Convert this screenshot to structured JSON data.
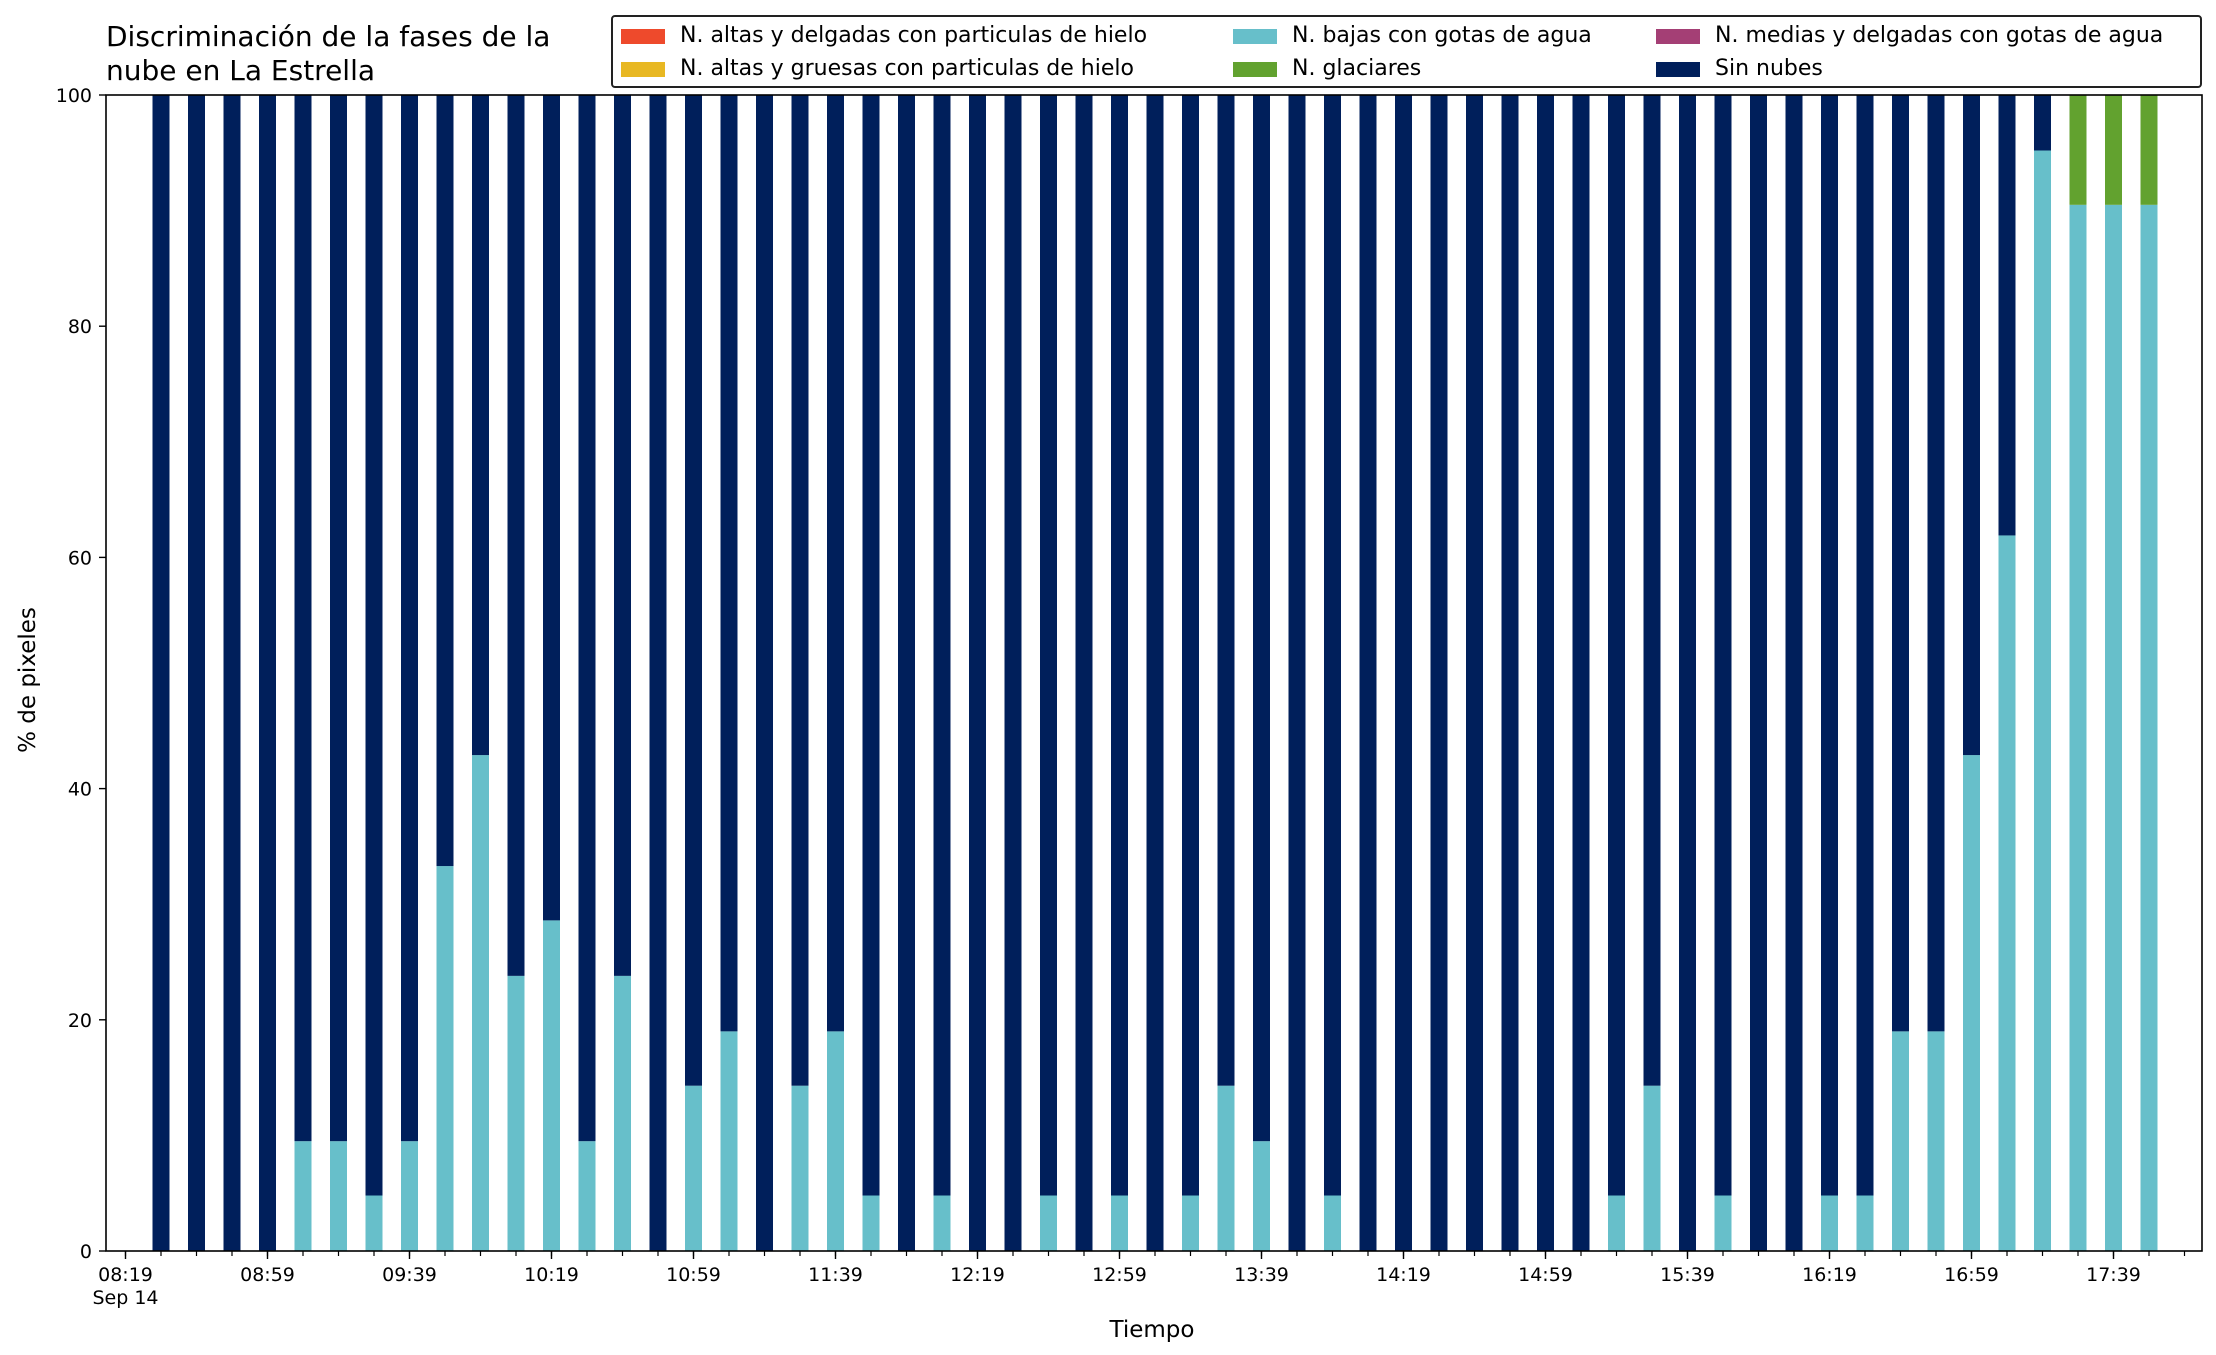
{
  "chart_data": {
    "type": "bar",
    "stacked": true,
    "title": "Discriminación de la fases de la nube en La Estrella",
    "title_lines": [
      "Discriminación de la fases de la",
      "nube en La Estrella"
    ],
    "xlabel": "Tiempo",
    "ylabel": "% de pixeles",
    "ylim": [
      0,
      100
    ],
    "yticks": [
      0,
      20,
      40,
      60,
      80,
      100
    ],
    "x_start": "08:19",
    "x_interval_minutes": 10,
    "xticks": [
      "08:19",
      "08:59",
      "09:39",
      "10:19",
      "10:59",
      "11:39",
      "12:19",
      "12:59",
      "13:39",
      "14:19",
      "14:59",
      "15:39",
      "16:19",
      "16:59",
      "17:39"
    ],
    "first_tick_sublabel": "Sep 14",
    "categories": [
      "08:29",
      "08:39",
      "08:49",
      "08:59",
      "09:09",
      "09:19",
      "09:29",
      "09:39",
      "09:49",
      "09:59",
      "10:09",
      "10:19",
      "10:29",
      "10:39",
      "10:49",
      "10:59",
      "11:09",
      "11:19",
      "11:29",
      "11:39",
      "11:49",
      "11:59",
      "12:09",
      "12:19",
      "12:29",
      "12:39",
      "12:49",
      "12:59",
      "13:09",
      "13:19",
      "13:29",
      "13:39",
      "13:49",
      "13:59",
      "14:09",
      "14:19",
      "14:29",
      "14:39",
      "14:49",
      "14:59",
      "15:09",
      "15:19",
      "15:29",
      "15:39",
      "15:49",
      "15:59",
      "16:09",
      "16:19",
      "16:29",
      "16:39",
      "16:49",
      "16:59",
      "17:09",
      "17:19",
      "17:29",
      "17:39",
      "17:49"
    ],
    "legend_position": "top-right",
    "legend_columns": 3,
    "series": [
      {
        "name": "N. altas y delgadas con particulas de hielo",
        "color": "#ee4a2c",
        "values": [
          0,
          0,
          0,
          0,
          0,
          0,
          0,
          0,
          0,
          0,
          0,
          0,
          0,
          0,
          0,
          0,
          0,
          0,
          0,
          0,
          0,
          0,
          0,
          0,
          0,
          0,
          0,
          0,
          0,
          0,
          0,
          0,
          0,
          0,
          0,
          0,
          0,
          0,
          0,
          0,
          0,
          0,
          0,
          0,
          0,
          0,
          0,
          0,
          0,
          0,
          0,
          0,
          0,
          0,
          0,
          0,
          0
        ]
      },
      {
        "name": "N. altas y gruesas con particulas de hielo",
        "color": "#e8b823",
        "values": [
          0,
          0,
          0,
          0,
          0,
          0,
          0,
          0,
          0,
          0,
          0,
          0,
          0,
          0,
          0,
          0,
          0,
          0,
          0,
          0,
          0,
          0,
          0,
          0,
          0,
          0,
          0,
          0,
          0,
          0,
          0,
          0,
          0,
          0,
          0,
          0,
          0,
          0,
          0,
          0,
          0,
          0,
          0,
          0,
          0,
          0,
          0,
          0,
          0,
          0,
          0,
          0,
          0,
          0,
          0,
          0,
          0
        ]
      },
      {
        "name": "N. bajas con gotas de agua",
        "color": "#67bfca",
        "values": [
          0,
          0,
          0,
          0,
          9.5,
          9.5,
          4.8,
          9.5,
          33.3,
          42.9,
          23.8,
          28.6,
          9.5,
          23.8,
          0,
          14.3,
          19,
          0,
          14.3,
          19,
          4.8,
          0,
          4.8,
          0,
          0,
          4.8,
          0,
          4.8,
          0,
          4.8,
          14.3,
          9.5,
          0,
          4.8,
          0,
          0,
          0,
          0,
          0,
          0,
          0,
          4.8,
          14.3,
          0,
          4.8,
          0,
          0,
          4.8,
          4.8,
          19,
          19,
          42.9,
          61.9,
          95.2,
          90.5,
          90.5,
          90.5
        ]
      },
      {
        "name": "N. glaciares",
        "color": "#62a22f",
        "values": [
          0,
          0,
          0,
          0,
          0,
          0,
          0,
          0,
          0,
          0,
          0,
          0,
          0,
          0,
          0,
          0,
          0,
          0,
          0,
          0,
          0,
          0,
          0,
          0,
          0,
          0,
          0,
          0,
          0,
          0,
          0,
          0,
          0,
          0,
          0,
          0,
          0,
          0,
          0,
          0,
          0,
          0,
          0,
          0,
          0,
          0,
          0,
          0,
          0,
          0,
          0,
          0,
          0,
          0,
          9.5,
          9.5,
          9.5
        ]
      },
      {
        "name": "N. medias y delgadas con gotas de agua",
        "color": "#a43f75",
        "values": [
          0,
          0,
          0,
          0,
          0,
          0,
          0,
          0,
          0,
          0,
          0,
          0,
          0,
          0,
          0,
          0,
          0,
          0,
          0,
          0,
          0,
          0,
          0,
          0,
          0,
          0,
          0,
          0,
          0,
          0,
          0,
          0,
          0,
          0,
          0,
          0,
          0,
          0,
          0,
          0,
          0,
          0,
          0,
          0,
          0,
          0,
          0,
          0,
          0,
          0,
          0,
          0,
          0,
          0,
          0,
          0,
          0
        ]
      },
      {
        "name": "Sin nubes",
        "color": "#001f5b",
        "values": [
          100,
          100,
          100,
          100,
          90.5,
          90.5,
          95.2,
          90.5,
          66.7,
          57.1,
          76.2,
          71.4,
          90.5,
          76.2,
          100,
          85.7,
          81,
          100,
          85.7,
          81,
          95.2,
          100,
          95.2,
          100,
          100,
          95.2,
          100,
          95.2,
          100,
          95.2,
          85.7,
          90.5,
          100,
          95.2,
          100,
          100,
          100,
          100,
          100,
          100,
          100,
          95.2,
          85.7,
          100,
          95.2,
          100,
          100,
          95.2,
          95.2,
          81,
          81,
          57.1,
          38.1,
          4.8,
          0,
          0,
          0
        ]
      }
    ]
  }
}
